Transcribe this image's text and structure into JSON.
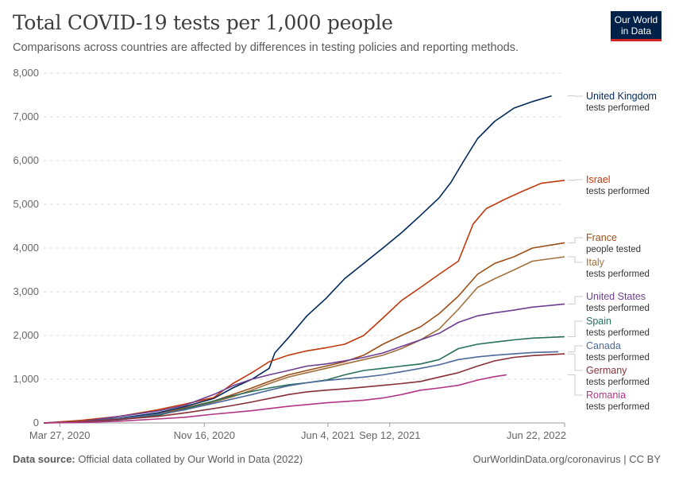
{
  "header": {
    "title": "Total COVID-19 tests per 1,000 people",
    "subtitle": "Comparisons across countries are affected by differences in testing policies and reporting methods."
  },
  "logo": {
    "line1": "Our World",
    "line2": "in Data"
  },
  "footer": {
    "source_label": "Data source:",
    "source_text": "Official data collated by Our World in Data (2022)",
    "right_text": "OurWorldinData.org/coronavirus | CC BY"
  },
  "chart_data": {
    "type": "line",
    "x_start": "2020-03-01",
    "x_end": "2022-06-22",
    "xlim": [
      "2020-03-01",
      "2022-06-22"
    ],
    "ylim": [
      0,
      8000
    ],
    "yticks": [
      0,
      1000,
      2000,
      3000,
      4000,
      5000,
      6000,
      7000,
      8000
    ],
    "ytick_labels": [
      "0",
      "1,000",
      "2,000",
      "3,000",
      "4,000",
      "5,000",
      "6,000",
      "7,000",
      "8,000"
    ],
    "xticks": [
      "2020-03-27",
      "2020-11-16",
      "2021-06-04",
      "2021-09-12",
      "2022-06-22"
    ],
    "xtick_labels": [
      "Mar 27, 2020",
      "Nov 16, 2020",
      "Jun 4, 2021",
      "Sep 12, 2021",
      "Jun 22, 2022"
    ],
    "grid": "horizontal dashed",
    "legend": "right, inline labels",
    "series": [
      {
        "name": "United Kingdom",
        "sub": "tests performed",
        "color": "#00295b",
        "points": [
          [
            "2020-03-01",
            0
          ],
          [
            "2020-05-01",
            40
          ],
          [
            "2020-07-01",
            110
          ],
          [
            "2020-09-01",
            230
          ],
          [
            "2020-10-15",
            370
          ],
          [
            "2020-12-01",
            560
          ],
          [
            "2021-01-01",
            800
          ],
          [
            "2021-02-01",
            1000
          ],
          [
            "2021-03-01",
            1250
          ],
          [
            "2021-03-10",
            1600
          ],
          [
            "2021-04-01",
            1950
          ],
          [
            "2021-05-01",
            2450
          ],
          [
            "2021-06-01",
            2850
          ],
          [
            "2021-07-01",
            3300
          ],
          [
            "2021-08-01",
            3650
          ],
          [
            "2021-09-01",
            4000
          ],
          [
            "2021-10-01",
            4350
          ],
          [
            "2021-11-01",
            4750
          ],
          [
            "2021-12-01",
            5150
          ],
          [
            "2021-12-20",
            5500
          ],
          [
            "2022-01-10",
            6000
          ],
          [
            "2022-02-01",
            6500
          ],
          [
            "2022-03-01",
            6900
          ],
          [
            "2022-04-01",
            7200
          ],
          [
            "2022-05-01",
            7350
          ],
          [
            "2022-06-01",
            7480
          ]
        ]
      },
      {
        "name": "Israel",
        "sub": "tests performed",
        "color": "#c1390d",
        "points": [
          [
            "2020-03-01",
            0
          ],
          [
            "2020-05-01",
            60
          ],
          [
            "2020-07-01",
            150
          ],
          [
            "2020-09-01",
            300
          ],
          [
            "2020-10-15",
            430
          ],
          [
            "2020-12-01",
            580
          ],
          [
            "2021-01-01",
            900
          ],
          [
            "2021-02-01",
            1150
          ],
          [
            "2021-03-01",
            1400
          ],
          [
            "2021-04-01",
            1550
          ],
          [
            "2021-05-01",
            1650
          ],
          [
            "2021-06-01",
            1720
          ],
          [
            "2021-07-01",
            1800
          ],
          [
            "2021-08-01",
            2000
          ],
          [
            "2021-09-01",
            2400
          ],
          [
            "2021-10-01",
            2800
          ],
          [
            "2021-11-01",
            3100
          ],
          [
            "2021-12-01",
            3400
          ],
          [
            "2022-01-01",
            3700
          ],
          [
            "2022-01-25",
            4550
          ],
          [
            "2022-02-15",
            4900
          ],
          [
            "2022-03-15",
            5100
          ],
          [
            "2022-04-15",
            5300
          ],
          [
            "2022-05-15",
            5480
          ],
          [
            "2022-06-22",
            5550
          ]
        ]
      },
      {
        "name": "France",
        "sub": "people tested",
        "color": "#9c4e17",
        "points": [
          [
            "2020-03-01",
            0
          ],
          [
            "2020-05-01",
            20
          ],
          [
            "2020-07-01",
            80
          ],
          [
            "2020-09-01",
            200
          ],
          [
            "2020-10-15",
            340
          ],
          [
            "2020-12-01",
            500
          ],
          [
            "2021-01-01",
            650
          ],
          [
            "2021-02-01",
            800
          ],
          [
            "2021-03-01",
            950
          ],
          [
            "2021-04-01",
            1100
          ],
          [
            "2021-05-01",
            1200
          ],
          [
            "2021-06-01",
            1300
          ],
          [
            "2021-07-01",
            1400
          ],
          [
            "2021-08-01",
            1550
          ],
          [
            "2021-09-01",
            1800
          ],
          [
            "2021-10-01",
            2000
          ],
          [
            "2021-11-01",
            2200
          ],
          [
            "2021-12-01",
            2500
          ],
          [
            "2022-01-01",
            2900
          ],
          [
            "2022-02-01",
            3400
          ],
          [
            "2022-03-01",
            3650
          ],
          [
            "2022-04-01",
            3800
          ],
          [
            "2022-05-01",
            4000
          ],
          [
            "2022-06-22",
            4120
          ]
        ]
      },
      {
        "name": "Italy",
        "sub": "tests performed",
        "color": "#a2703d",
        "points": [
          [
            "2020-03-01",
            0
          ],
          [
            "2020-05-01",
            40
          ],
          [
            "2020-07-01",
            100
          ],
          [
            "2020-09-01",
            180
          ],
          [
            "2020-10-15",
            300
          ],
          [
            "2020-12-01",
            480
          ],
          [
            "2021-01-01",
            600
          ],
          [
            "2021-02-01",
            750
          ],
          [
            "2021-03-01",
            900
          ],
          [
            "2021-04-01",
            1050
          ],
          [
            "2021-05-01",
            1150
          ],
          [
            "2021-06-01",
            1250
          ],
          [
            "2021-07-01",
            1350
          ],
          [
            "2021-08-01",
            1450
          ],
          [
            "2021-09-01",
            1550
          ],
          [
            "2021-10-01",
            1700
          ],
          [
            "2021-11-01",
            1900
          ],
          [
            "2021-12-01",
            2150
          ],
          [
            "2022-01-01",
            2600
          ],
          [
            "2022-02-01",
            3100
          ],
          [
            "2022-03-01",
            3300
          ],
          [
            "2022-04-01",
            3500
          ],
          [
            "2022-05-01",
            3700
          ],
          [
            "2022-06-22",
            3800
          ]
        ]
      },
      {
        "name": "United States",
        "sub": "tests performed",
        "color": "#6d3e91",
        "points": [
          [
            "2020-03-01",
            0
          ],
          [
            "2020-05-01",
            30
          ],
          [
            "2020-07-01",
            150
          ],
          [
            "2020-09-01",
            270
          ],
          [
            "2020-10-15",
            400
          ],
          [
            "2020-12-01",
            650
          ],
          [
            "2021-01-01",
            850
          ],
          [
            "2021-02-01",
            1000
          ],
          [
            "2021-03-01",
            1100
          ],
          [
            "2021-04-01",
            1200
          ],
          [
            "2021-05-01",
            1300
          ],
          [
            "2021-06-01",
            1350
          ],
          [
            "2021-07-01",
            1420
          ],
          [
            "2021-08-01",
            1500
          ],
          [
            "2021-09-01",
            1600
          ],
          [
            "2021-10-01",
            1750
          ],
          [
            "2021-11-01",
            1900
          ],
          [
            "2021-12-01",
            2050
          ],
          [
            "2022-01-01",
            2300
          ],
          [
            "2022-02-01",
            2450
          ],
          [
            "2022-03-01",
            2520
          ],
          [
            "2022-04-01",
            2580
          ],
          [
            "2022-05-01",
            2650
          ],
          [
            "2022-06-22",
            2720
          ]
        ]
      },
      {
        "name": "Spain",
        "sub": "tests performed",
        "color": "#286f5c",
        "points": [
          [
            "2020-03-01",
            0
          ],
          [
            "2020-05-01",
            20
          ],
          [
            "2020-07-01",
            70
          ],
          [
            "2020-09-01",
            170
          ],
          [
            "2020-10-15",
            320
          ],
          [
            "2020-12-01",
            500
          ],
          [
            "2021-01-01",
            620
          ],
          [
            "2021-02-01",
            720
          ],
          [
            "2021-03-01",
            800
          ],
          [
            "2021-04-01",
            870
          ],
          [
            "2021-05-01",
            920
          ],
          [
            "2021-06-01",
            980
          ],
          [
            "2021-07-01",
            1100
          ],
          [
            "2021-08-01",
            1200
          ],
          [
            "2021-09-01",
            1250
          ],
          [
            "2021-10-01",
            1300
          ],
          [
            "2021-11-01",
            1350
          ],
          [
            "2021-12-01",
            1450
          ],
          [
            "2022-01-01",
            1700
          ],
          [
            "2022-02-01",
            1800
          ],
          [
            "2022-03-01",
            1850
          ],
          [
            "2022-04-01",
            1900
          ],
          [
            "2022-05-01",
            1940
          ],
          [
            "2022-06-22",
            1970
          ]
        ]
      },
      {
        "name": "Canada",
        "sub": "tests performed",
        "color": "#4c6a9c",
        "points": [
          [
            "2020-03-01",
            0
          ],
          [
            "2020-05-01",
            30
          ],
          [
            "2020-07-01",
            100
          ],
          [
            "2020-09-01",
            200
          ],
          [
            "2020-10-15",
            300
          ],
          [
            "2020-12-01",
            450
          ],
          [
            "2021-01-01",
            550
          ],
          [
            "2021-02-01",
            650
          ],
          [
            "2021-03-01",
            750
          ],
          [
            "2021-04-01",
            850
          ],
          [
            "2021-05-01",
            920
          ],
          [
            "2021-06-01",
            970
          ],
          [
            "2021-07-01",
            1010
          ],
          [
            "2021-08-01",
            1050
          ],
          [
            "2021-09-01",
            1100
          ],
          [
            "2021-10-01",
            1170
          ],
          [
            "2021-11-01",
            1250
          ],
          [
            "2021-12-01",
            1330
          ],
          [
            "2022-01-01",
            1450
          ],
          [
            "2022-02-01",
            1510
          ],
          [
            "2022-03-01",
            1550
          ],
          [
            "2022-04-01",
            1580
          ],
          [
            "2022-05-01",
            1610
          ],
          [
            "2022-06-12",
            1630
          ]
        ]
      },
      {
        "name": "Germany",
        "sub": "tests performed",
        "color": "#883039",
        "points": [
          [
            "2020-03-01",
            0
          ],
          [
            "2020-05-01",
            30
          ],
          [
            "2020-07-01",
            80
          ],
          [
            "2020-09-01",
            150
          ],
          [
            "2020-10-15",
            230
          ],
          [
            "2020-12-01",
            330
          ],
          [
            "2021-01-01",
            400
          ],
          [
            "2021-02-01",
            480
          ],
          [
            "2021-03-01",
            560
          ],
          [
            "2021-04-01",
            650
          ],
          [
            "2021-05-01",
            710
          ],
          [
            "2021-06-01",
            750
          ],
          [
            "2021-07-01",
            780
          ],
          [
            "2021-08-01",
            820
          ],
          [
            "2021-09-01",
            860
          ],
          [
            "2021-10-01",
            900
          ],
          [
            "2021-11-01",
            950
          ],
          [
            "2021-12-01",
            1050
          ],
          [
            "2022-01-01",
            1150
          ],
          [
            "2022-02-01",
            1300
          ],
          [
            "2022-03-01",
            1420
          ],
          [
            "2022-04-01",
            1500
          ],
          [
            "2022-05-01",
            1540
          ],
          [
            "2022-06-22",
            1580
          ]
        ]
      },
      {
        "name": "Romania",
        "sub": "tests performed",
        "color": "#b13684",
        "points": [
          [
            "2020-03-01",
            0
          ],
          [
            "2020-05-01",
            10
          ],
          [
            "2020-07-01",
            40
          ],
          [
            "2020-09-01",
            90
          ],
          [
            "2020-10-15",
            130
          ],
          [
            "2020-12-01",
            200
          ],
          [
            "2021-01-01",
            240
          ],
          [
            "2021-02-01",
            280
          ],
          [
            "2021-03-01",
            330
          ],
          [
            "2021-04-01",
            380
          ],
          [
            "2021-05-01",
            420
          ],
          [
            "2021-06-01",
            460
          ],
          [
            "2021-07-01",
            490
          ],
          [
            "2021-08-01",
            520
          ],
          [
            "2021-09-01",
            570
          ],
          [
            "2021-10-01",
            650
          ],
          [
            "2021-11-01",
            750
          ],
          [
            "2021-12-01",
            800
          ],
          [
            "2022-01-01",
            860
          ],
          [
            "2022-02-01",
            980
          ],
          [
            "2022-03-01",
            1060
          ],
          [
            "2022-03-20",
            1100
          ]
        ]
      }
    ],
    "labels": [
      {
        "name": "United Kingdom",
        "sub": "tests performed",
        "color": "#00295b"
      },
      {
        "name": "Israel",
        "sub": "tests performed",
        "color": "#c1390d"
      },
      {
        "name": "France",
        "sub": "people tested",
        "color": "#9c4e17"
      },
      {
        "name": "Italy",
        "sub": "tests performed",
        "color": "#a2703d"
      },
      {
        "name": "United States",
        "sub": "tests performed",
        "color": "#6d3e91"
      },
      {
        "name": "Spain",
        "sub": "tests performed",
        "color": "#286f5c"
      },
      {
        "name": "Canada",
        "sub": "tests performed",
        "color": "#4c6a9c"
      },
      {
        "name": "Germany",
        "sub": "tests performed",
        "color": "#883039"
      },
      {
        "name": "Romania",
        "sub": "tests performed",
        "color": "#b13684"
      }
    ]
  }
}
